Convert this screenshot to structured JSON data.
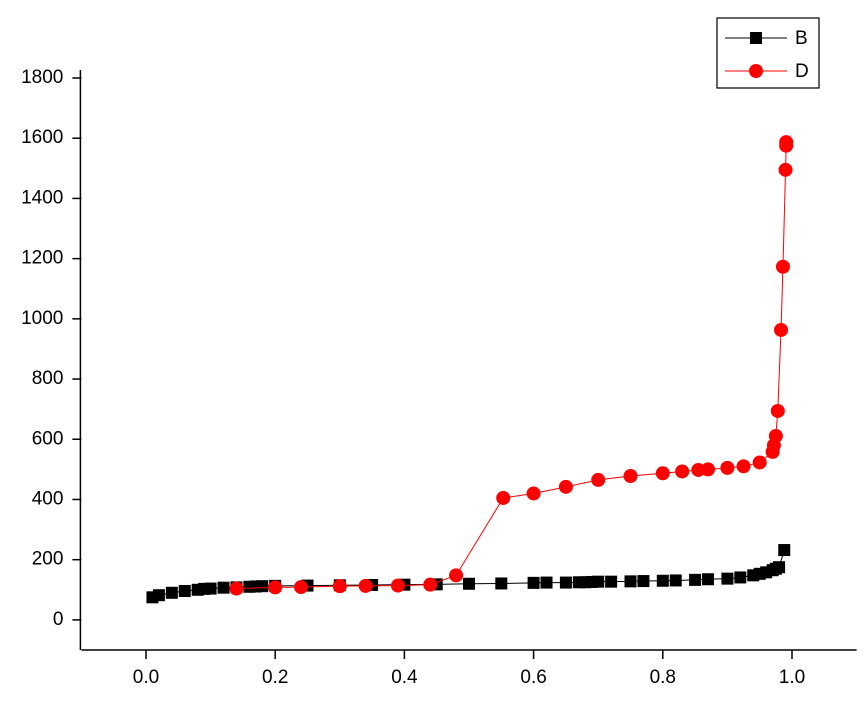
{
  "chart_data": {
    "type": "line",
    "xlim": [
      -0.1,
      1.1
    ],
    "xticks": [
      {
        "value": 0,
        "label": "0.0"
      },
      0.2,
      0.4,
      0.6,
      0.8,
      {
        "value": 1,
        "label": "1.0"
      }
    ],
    "ylim": [
      -100,
      1800
    ],
    "yticks": [
      0,
      200,
      400,
      600,
      800,
      1000,
      1200,
      1400,
      1600,
      1800
    ],
    "legend": "upper right",
    "series": [
      {
        "name": "B",
        "color": "#000000",
        "marker": "square",
        "x": [
          0.01,
          0.02,
          0.04,
          0.06,
          0.08,
          0.09,
          0.1,
          0.12,
          0.14,
          0.16,
          0.17,
          0.18,
          0.2,
          0.25,
          0.3,
          0.35,
          0.4,
          0.45,
          0.5,
          0.55,
          0.6,
          0.62,
          0.65,
          0.67,
          0.68,
          0.69,
          0.7,
          0.72,
          0.75,
          0.77,
          0.8,
          0.82,
          0.85,
          0.87,
          0.9,
          0.92,
          0.94,
          0.95,
          0.96,
          0.97,
          0.975,
          0.98,
          0.988
        ],
        "values": [
          75,
          82,
          90,
          96,
          100,
          103,
          104,
          107,
          108,
          110,
          111,
          112,
          113,
          114,
          115,
          116,
          117,
          118,
          120,
          121,
          123,
          124,
          124,
          125,
          125,
          126,
          127,
          127,
          128,
          129,
          130,
          131,
          133,
          135,
          137,
          141,
          148,
          153,
          158,
          165,
          170,
          175,
          232
        ]
      },
      {
        "name": "D",
        "color": "#ff0000",
        "marker": "circle",
        "x": [
          0.14,
          0.2,
          0.24,
          0.3,
          0.34,
          0.39,
          0.44,
          0.48,
          0.553,
          0.6,
          0.65,
          0.7,
          0.75,
          0.8,
          0.83,
          0.855,
          0.87,
          0.9,
          0.925,
          0.95,
          0.97,
          0.972,
          0.975,
          0.978,
          0.983,
          0.986,
          0.99,
          0.991,
          0.991
        ],
        "values": [
          104,
          108,
          109,
          112,
          113,
          114,
          117,
          148,
          405,
          420,
          442,
          465,
          478,
          487,
          493,
          498,
          500,
          505,
          510,
          523,
          558,
          580,
          611,
          694,
          963,
          1173,
          1495,
          1575,
          1587
        ]
      }
    ]
  }
}
